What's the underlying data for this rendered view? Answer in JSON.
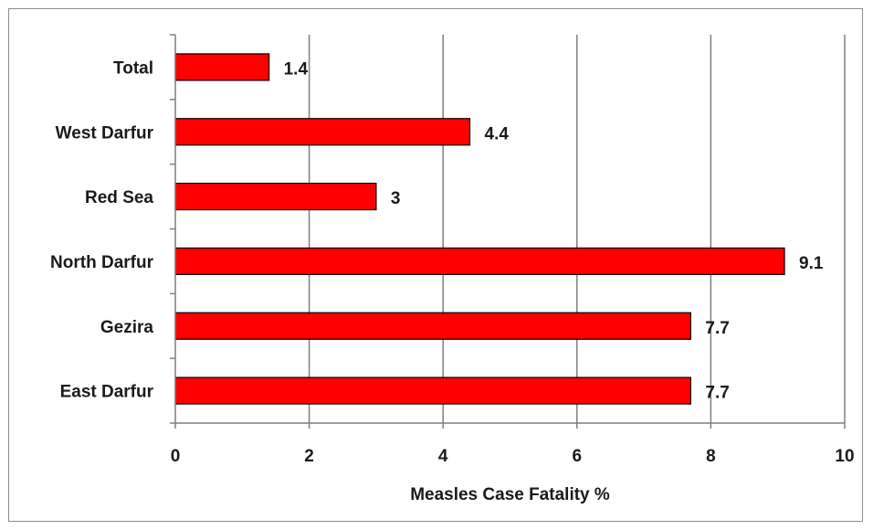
{
  "chart_data": {
    "type": "bar",
    "orientation": "horizontal",
    "categories": [
      "Total",
      "West Darfur",
      "Red Sea",
      "North Darfur",
      "Gezira",
      "East Darfur"
    ],
    "values": [
      1.4,
      4.4,
      3,
      9.1,
      7.7,
      7.7
    ],
    "value_labels": [
      "1.4",
      "4.4",
      "3",
      "9.1",
      "7.7",
      "7.7"
    ],
    "xlabel": "Measles  Case Fatality %",
    "ylabel": "",
    "xlim": [
      0,
      10
    ],
    "xticks": [
      0,
      2,
      4,
      6,
      8,
      10
    ],
    "xtick_labels": [
      "0",
      "2",
      "4",
      "6",
      "8",
      "10"
    ],
    "grid": "vertical major gridlines",
    "legend": "none",
    "colors": {
      "bar_fill": "#ff0000",
      "bar_stroke": "#000000",
      "gridline": "#7f7f7f",
      "text": "#1a1a1a"
    }
  }
}
